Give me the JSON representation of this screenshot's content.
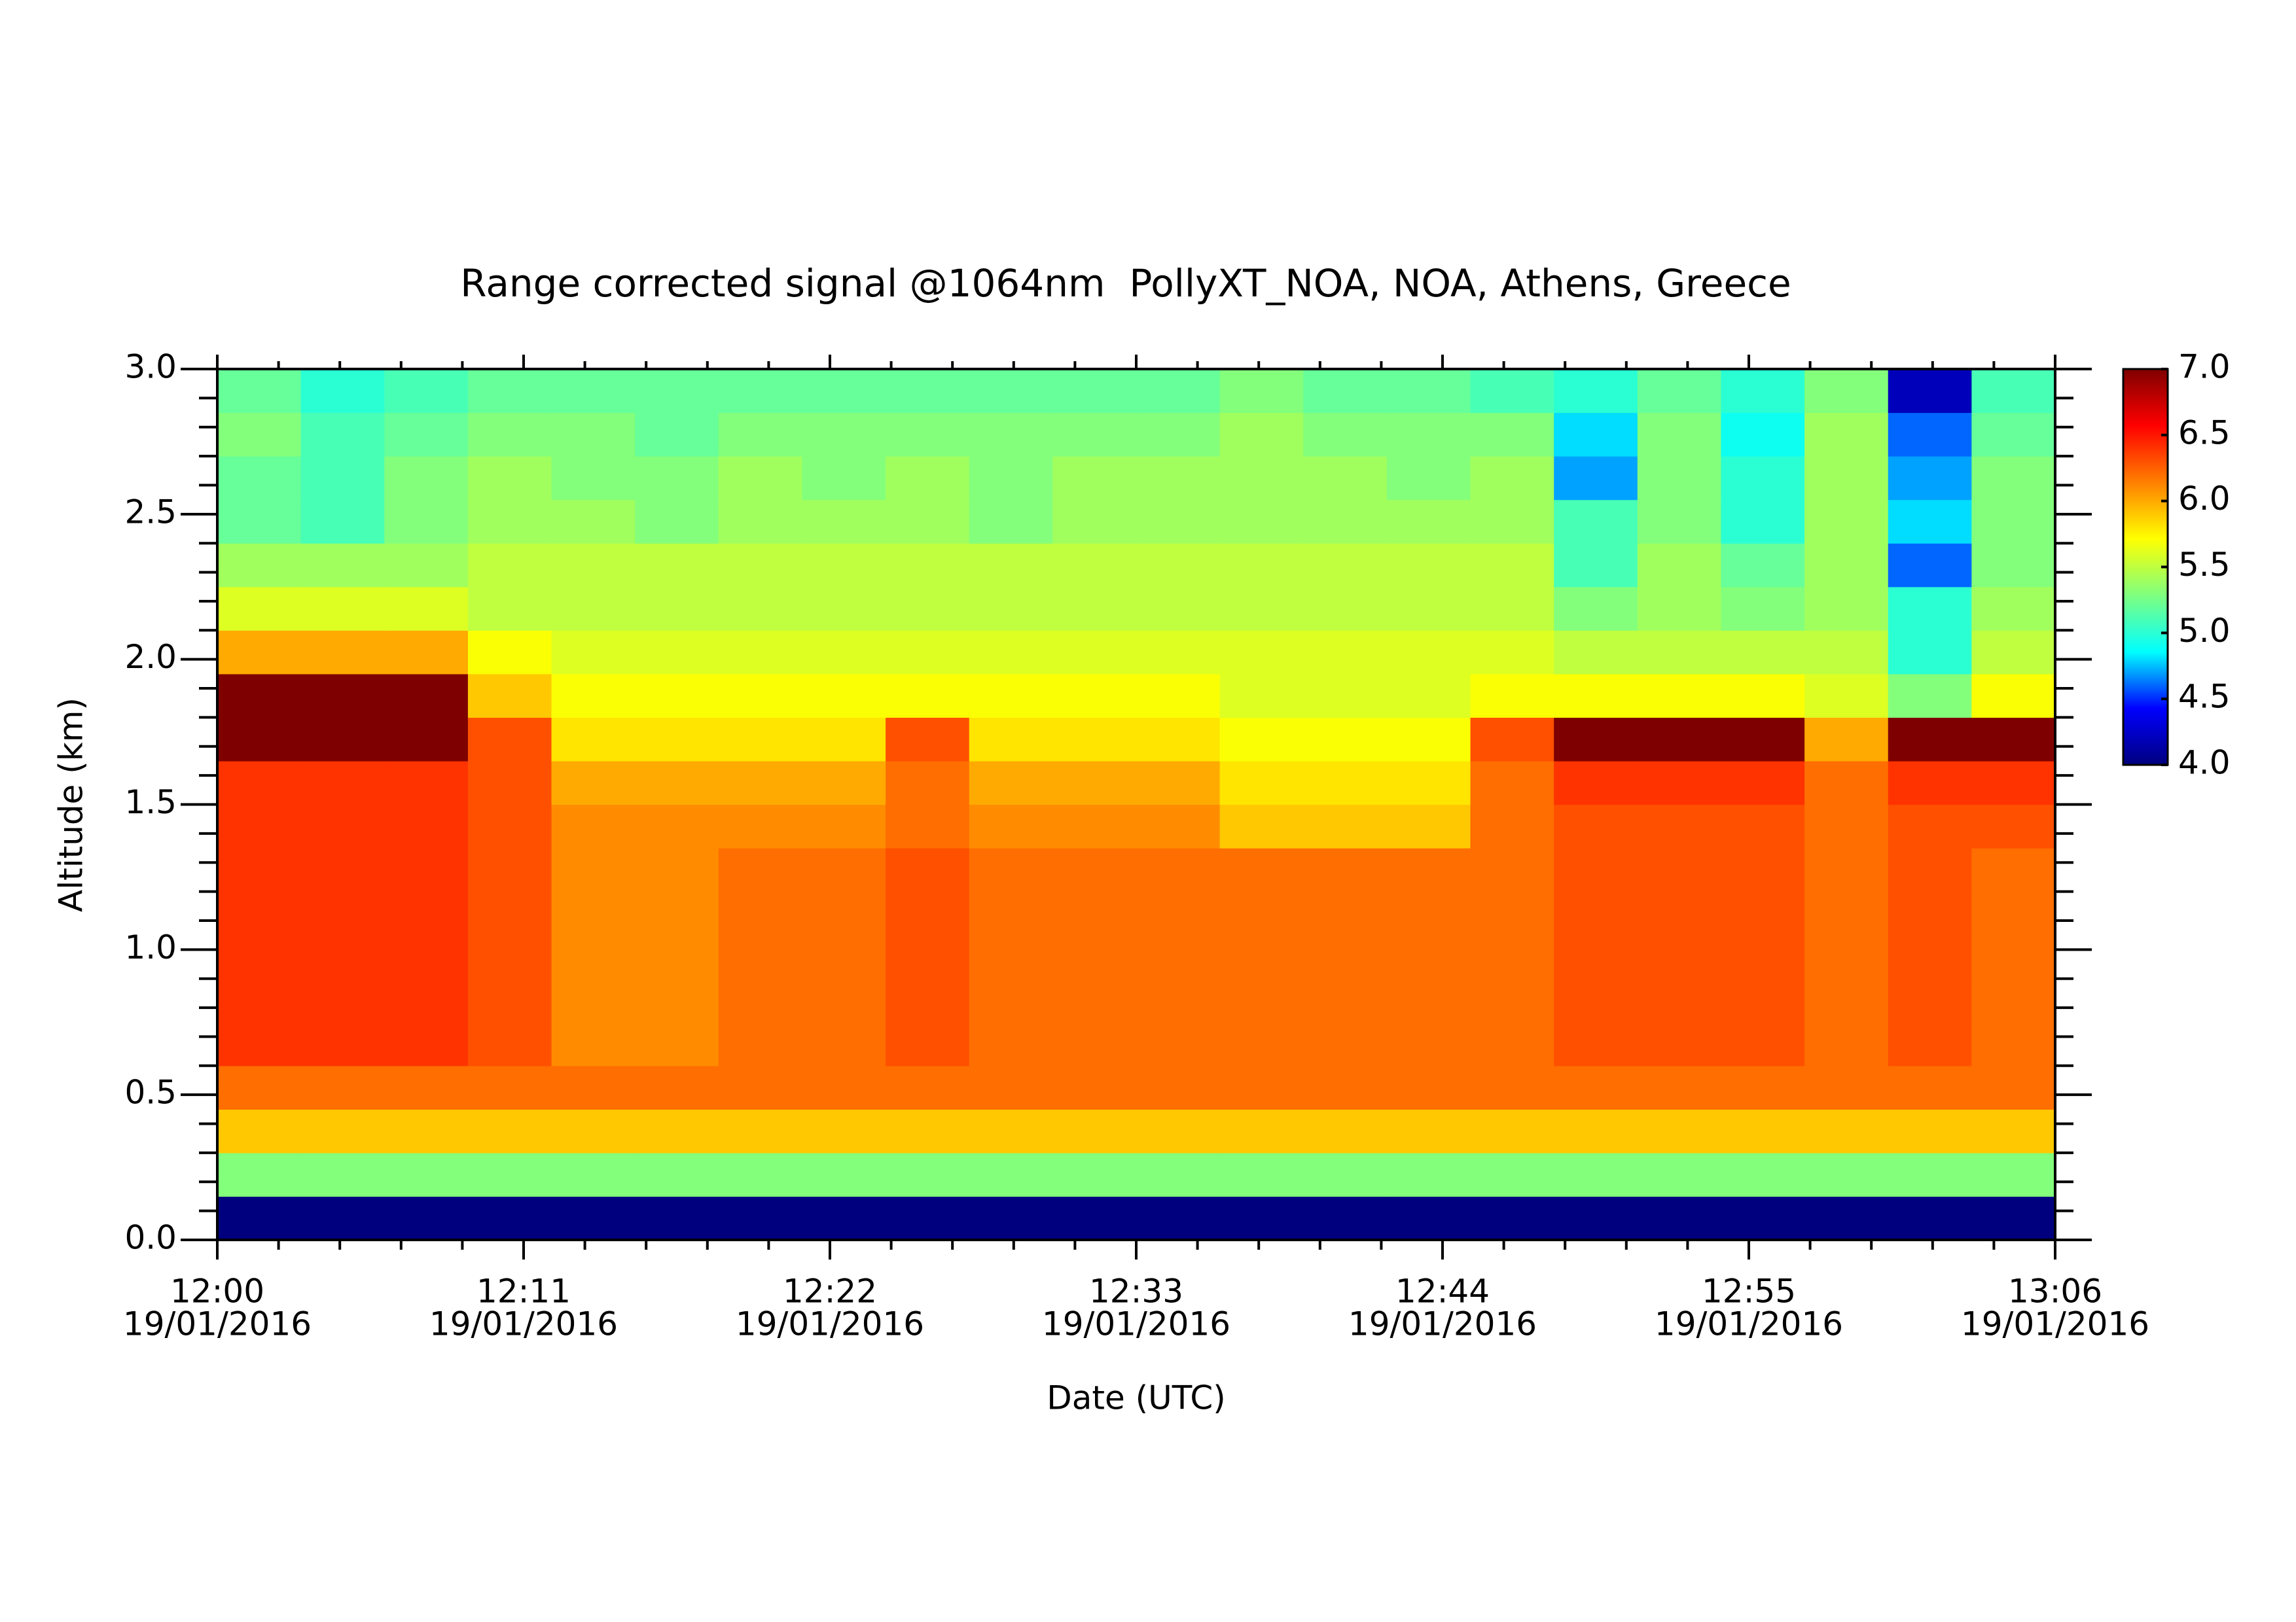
{
  "chart_data": {
    "type": "heatmap",
    "title": "Range corrected signal @1064nm  PollyXT_NOA, NOA, Athens, Greece",
    "xlabel": "Date (UTC)",
    "ylabel": "Altitude (km)",
    "xlim": [
      "12:00",
      "13:06"
    ],
    "xticks": [
      {
        "value": "12:00",
        "label": [
          "12:00",
          "19/01/2016"
        ]
      },
      {
        "value": "12:11",
        "label": [
          "12:11",
          "19/01/2016"
        ]
      },
      {
        "value": "12:22",
        "label": [
          "12:22",
          "19/01/2016"
        ]
      },
      {
        "value": "12:33",
        "label": [
          "12:33",
          "19/01/2016"
        ]
      },
      {
        "value": "12:44",
        "label": [
          "12:44",
          "19/01/2016"
        ]
      },
      {
        "value": "12:55",
        "label": [
          "12:55",
          "19/01/2016"
        ]
      },
      {
        "value": "13:06",
        "label": [
          "13:06",
          "19/01/2016"
        ]
      }
    ],
    "ylim": [
      0,
      3
    ],
    "yticks": [
      {
        "value": 0,
        "label": "0.0"
      },
      0.5,
      {
        "value": 1,
        "label": "1.0"
      },
      1.5,
      {
        "value": 2,
        "label": "2.0"
      },
      2.5,
      {
        "value": 3,
        "label": "3.0"
      }
    ],
    "xbins": [
      "12:00",
      "12:03",
      "12:06",
      "12:09",
      "12:12",
      "12:15",
      "12:18",
      "12:21",
      "12:24",
      "12:27",
      "12:30",
      "12:33",
      "12:36",
      "12:39",
      "12:42",
      "12:45",
      "12:48",
      "12:51",
      "12:54",
      "12:57",
      "13:00",
      "13:03",
      "13:06"
    ],
    "ybins": [
      0,
      0.15,
      0.3,
      0.45,
      0.6,
      0.75,
      0.9,
      1.05,
      1.2,
      1.35,
      1.5,
      1.65,
      1.8,
      1.95,
      2.1,
      2.25,
      2.4,
      2.55,
      2.7,
      2.85,
      3
    ],
    "zlim": [
      4,
      7
    ],
    "zticks": [
      {
        "value": 4,
        "label": "4.0"
      },
      4.5,
      {
        "value": 5,
        "label": "5.0"
      },
      5.5,
      {
        "value": 6,
        "label": "6.0"
      },
      6.5,
      {
        "value": 7,
        "label": "7.0"
      }
    ],
    "colormap": [
      "#00007f",
      "#0000ff",
      "#00ffff",
      "#7fff7f",
      "#ffff00",
      "#ff7f00",
      "#ff0000",
      "#7f0000"
    ],
    "z": [
      [
        4,
        4,
        4,
        4,
        4,
        4,
        4,
        4,
        4,
        4,
        4,
        4,
        4,
        4,
        4,
        4,
        4,
        4,
        4,
        4,
        4,
        4
      ],
      [
        5.3,
        5.3,
        5.3,
        5.3,
        5.3,
        5.3,
        5.3,
        5.3,
        5.3,
        5.3,
        5.3,
        5.3,
        5.3,
        5.3,
        5.3,
        5.3,
        5.3,
        5.3,
        5.3,
        5.3,
        5.3,
        5.3
      ],
      [
        5.9,
        5.9,
        5.9,
        5.9,
        5.9,
        5.9,
        5.9,
        5.9,
        5.9,
        5.9,
        5.9,
        5.9,
        5.9,
        5.9,
        5.9,
        5.9,
        5.9,
        5.9,
        5.9,
        5.9,
        5.9,
        5.9
      ],
      [
        6.2,
        6.2,
        6.2,
        6.2,
        6.2,
        6.2,
        6.2,
        6.2,
        6.2,
        6.2,
        6.2,
        6.2,
        6.2,
        6.2,
        6.2,
        6.2,
        6.2,
        6.2,
        6.2,
        6.2,
        6.2,
        6.2
      ],
      [
        6.4,
        6.4,
        6.4,
        6.3,
        6.1,
        6.1,
        6.2,
        6.2,
        6.3,
        6.2,
        6.2,
        6.2,
        6.2,
        6.2,
        6.2,
        6.2,
        6.3,
        6.3,
        6.3,
        6.2,
        6.3,
        6.2
      ],
      [
        6.4,
        6.4,
        6.4,
        6.3,
        6.1,
        6.1,
        6.2,
        6.2,
        6.3,
        6.2,
        6.2,
        6.2,
        6.2,
        6.2,
        6.2,
        6.2,
        6.3,
        6.3,
        6.3,
        6.2,
        6.3,
        6.2
      ],
      [
        6.4,
        6.4,
        6.4,
        6.3,
        6.1,
        6.1,
        6.2,
        6.2,
        6.3,
        6.2,
        6.2,
        6.2,
        6.2,
        6.2,
        6.2,
        6.2,
        6.3,
        6.3,
        6.3,
        6.2,
        6.3,
        6.2
      ],
      [
        6.4,
        6.4,
        6.4,
        6.3,
        6.1,
        6.1,
        6.2,
        6.2,
        6.3,
        6.2,
        6.2,
        6.2,
        6.2,
        6.2,
        6.2,
        6.2,
        6.3,
        6.3,
        6.3,
        6.2,
        6.3,
        6.2
      ],
      [
        6.4,
        6.4,
        6.4,
        6.3,
        6.1,
        6.1,
        6.2,
        6.2,
        6.3,
        6.2,
        6.2,
        6.2,
        6.2,
        6.2,
        6.2,
        6.2,
        6.3,
        6.3,
        6.3,
        6.2,
        6.3,
        6.2
      ],
      [
        6.4,
        6.4,
        6.4,
        6.3,
        6.1,
        6.1,
        6.1,
        6.1,
        6.2,
        6.1,
        6.1,
        6.1,
        5.9,
        5.9,
        5.9,
        6.2,
        6.3,
        6.3,
        6.3,
        6.2,
        6.3,
        6.3
      ],
      [
        6.4,
        6.4,
        6.4,
        6.3,
        6,
        6,
        6,
        6,
        6.2,
        6,
        6,
        6,
        5.8,
        5.8,
        5.8,
        6.2,
        6.4,
        6.4,
        6.4,
        6.2,
        6.4,
        6.4
      ],
      [
        7,
        7,
        7,
        6.3,
        5.8,
        5.8,
        5.8,
        5.8,
        6.3,
        5.8,
        5.8,
        5.8,
        5.7,
        5.7,
        5.7,
        6.3,
        7,
        7,
        7,
        6,
        7,
        7
      ],
      [
        7,
        7,
        7,
        5.9,
        5.7,
        5.7,
        5.7,
        5.7,
        5.7,
        5.7,
        5.7,
        5.7,
        5.6,
        5.6,
        5.6,
        5.7,
        5.7,
        5.7,
        5.7,
        5.6,
        5.3,
        5.7
      ],
      [
        6,
        6,
        6,
        5.7,
        5.6,
        5.6,
        5.6,
        5.6,
        5.6,
        5.6,
        5.6,
        5.6,
        5.6,
        5.6,
        5.6,
        5.6,
        5.5,
        5.5,
        5.5,
        5.5,
        5,
        5.5
      ],
      [
        5.6,
        5.6,
        5.6,
        5.5,
        5.5,
        5.5,
        5.5,
        5.5,
        5.5,
        5.5,
        5.5,
        5.5,
        5.5,
        5.5,
        5.5,
        5.5,
        5.3,
        5.4,
        5.3,
        5.4,
        5,
        5.4
      ],
      [
        5.4,
        5.4,
        5.4,
        5.5,
        5.5,
        5.5,
        5.5,
        5.5,
        5.5,
        5.5,
        5.5,
        5.5,
        5.5,
        5.5,
        5.5,
        5.5,
        5.1,
        5.4,
        5.2,
        5.4,
        4.6,
        5.3
      ],
      [
        5.2,
        5.1,
        5.3,
        5.4,
        5.4,
        5.3,
        5.4,
        5.4,
        5.4,
        5.3,
        5.4,
        5.4,
        5.4,
        5.4,
        5.4,
        5.4,
        5.1,
        5.3,
        5,
        5.4,
        4.8,
        5.3
      ],
      [
        5.2,
        5.1,
        5.3,
        5.4,
        5.3,
        5.3,
        5.4,
        5.3,
        5.4,
        5.3,
        5.4,
        5.4,
        5.4,
        5.4,
        5.3,
        5.4,
        4.7,
        5.3,
        5,
        5.4,
        4.7,
        5.3
      ],
      [
        5.3,
        5.1,
        5.2,
        5.3,
        5.3,
        5.2,
        5.3,
        5.3,
        5.3,
        5.3,
        5.3,
        5.3,
        5.4,
        5.3,
        5.3,
        5.3,
        4.8,
        5.3,
        4.9,
        5.4,
        4.6,
        5.2
      ],
      [
        5.2,
        5,
        5.1,
        5.2,
        5.2,
        5.2,
        5.2,
        5.2,
        5.2,
        5.2,
        5.2,
        5.2,
        5.3,
        5.2,
        5.2,
        5.1,
        5,
        5.2,
        5,
        5.3,
        4.2,
        5.1
      ]
    ]
  }
}
